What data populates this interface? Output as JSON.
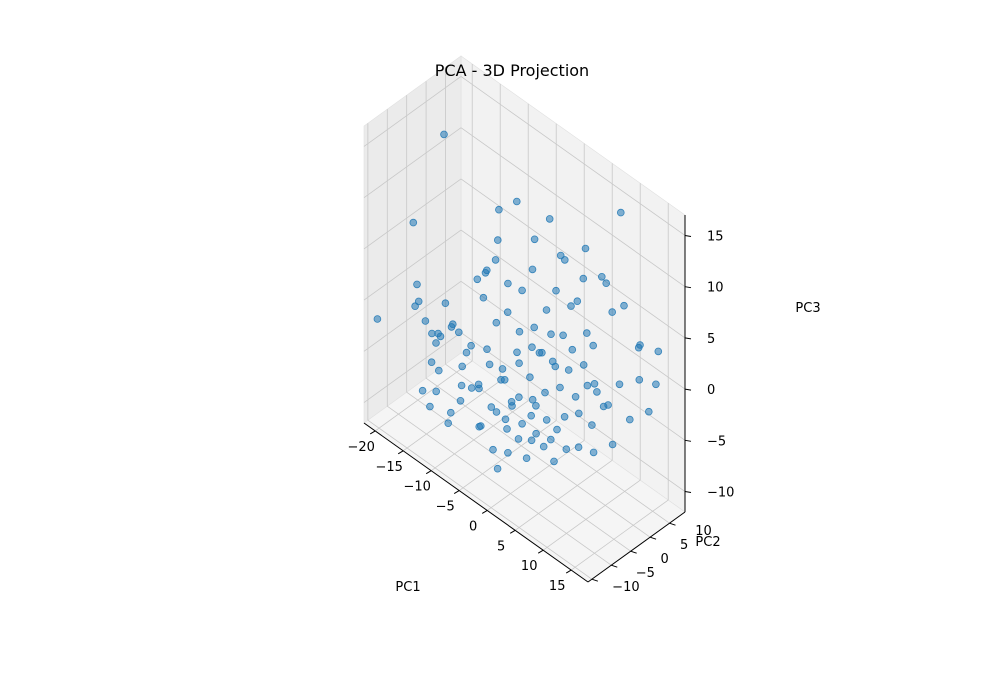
{
  "chart_data": {
    "type": "scatter",
    "projection": "3d",
    "title": "PCA - 3D Projection",
    "xlabel": "PC1",
    "ylabel": "PC2",
    "zlabel": "PC3",
    "xticks": [
      -20,
      -15,
      -10,
      -5,
      0,
      5,
      10,
      15
    ],
    "yticks": [
      -10,
      -5,
      0,
      5,
      10
    ],
    "zticks": [
      -10,
      -5,
      0,
      5,
      10,
      15
    ],
    "xlim": [
      -22,
      18
    ],
    "ylim": [
      -11,
      14
    ],
    "zlim": [
      -12,
      17
    ],
    "grid": true,
    "marker_color": "#1f77b4",
    "marker_alpha": 0.55,
    "points": [
      {
        "x": -19.5,
        "y": 6.0,
        "z": 12.5
      },
      {
        "x": -17.0,
        "y": -5.5,
        "z": 8.0
      },
      {
        "x": -21.0,
        "y": -9.0,
        "z": -2.0
      },
      {
        "x": -16.0,
        "y": -6.0,
        "z": 2.5
      },
      {
        "x": -15.0,
        "y": -7.0,
        "z": 1.5
      },
      {
        "x": -14.5,
        "y": -6.0,
        "z": -0.5
      },
      {
        "x": -13.0,
        "y": -6.5,
        "z": -1.0
      },
      {
        "x": -14.0,
        "y": -4.0,
        "z": -3.0
      },
      {
        "x": -16.0,
        "y": -6.5,
        "z": 0.5
      },
      {
        "x": -12.5,
        "y": -5.0,
        "z": -1.5
      },
      {
        "x": -13.0,
        "y": -3.0,
        "z": 1.0
      },
      {
        "x": -11.0,
        "y": -4.0,
        "z": 0.0
      },
      {
        "x": -15.0,
        "y": -2.0,
        "z": -3.0
      },
      {
        "x": -12.0,
        "y": -1.0,
        "z": -2.0
      },
      {
        "x": -15.0,
        "y": -6.0,
        "z": -7.5
      },
      {
        "x": -13.0,
        "y": -7.0,
        "z": -8.0
      },
      {
        "x": -13.5,
        "y": -4.0,
        "z": -5.5
      },
      {
        "x": -11.0,
        "y": -4.5,
        "z": -8.5
      },
      {
        "x": -10.0,
        "y": -3.0,
        "z": -4.0
      },
      {
        "x": -9.0,
        "y": -2.0,
        "z": -6.0
      },
      {
        "x": -11.5,
        "y": -1.0,
        "z": -7.0
      },
      {
        "x": -10.5,
        "y": 0.0,
        "z": -3.0
      },
      {
        "x": -8.0,
        "y": -2.0,
        "z": 5.0
      },
      {
        "x": -7.0,
        "y": -1.0,
        "z": 6.0
      },
      {
        "x": -9.0,
        "y": 1.0,
        "z": 2.0
      },
      {
        "x": -7.5,
        "y": 2.0,
        "z": 6.0
      },
      {
        "x": -6.0,
        "y": 0.0,
        "z": 1.0
      },
      {
        "x": -5.0,
        "y": 1.5,
        "z": 2.0
      },
      {
        "x": -8.0,
        "y": 0.5,
        "z": -2.5
      },
      {
        "x": -6.5,
        "y": -1.0,
        "z": -3.0
      },
      {
        "x": -7.0,
        "y": -3.0,
        "z": -5.0
      },
      {
        "x": -5.5,
        "y": -2.0,
        "z": -6.5
      },
      {
        "x": -4.5,
        "y": 0.0,
        "z": -4.0
      },
      {
        "x": -3.5,
        "y": -2.0,
        "z": -2.0
      },
      {
        "x": -3.0,
        "y": 1.0,
        "z": -1.0
      },
      {
        "x": -4.0,
        "y": 3.0,
        "z": -3.0
      },
      {
        "x": -2.5,
        "y": -1.0,
        "z": -5.5
      },
      {
        "x": -2.0,
        "y": -3.0,
        "z": -7.0
      },
      {
        "x": -6.0,
        "y": -4.0,
        "z": -8.0
      },
      {
        "x": -4.5,
        "y": -3.0,
        "z": -10.0
      },
      {
        "x": -3.0,
        "y": -4.0,
        "z": -11.0
      },
      {
        "x": -1.5,
        "y": -3.5,
        "z": -9.0
      },
      {
        "x": -1.0,
        "y": -1.5,
        "z": -8.0
      },
      {
        "x": 0.0,
        "y": -2.0,
        "z": -6.0
      },
      {
        "x": 0.5,
        "y": 0.0,
        "z": -4.0
      },
      {
        "x": 1.0,
        "y": -1.0,
        "z": -7.5
      },
      {
        "x": 1.5,
        "y": -3.0,
        "z": -8.5
      },
      {
        "x": 2.5,
        "y": -2.0,
        "z": -6.0
      },
      {
        "x": 2.0,
        "y": 1.0,
        "z": -3.0
      },
      {
        "x": 3.0,
        "y": 0.0,
        "z": -5.0
      },
      {
        "x": 3.5,
        "y": -1.5,
        "z": -7.0
      },
      {
        "x": 4.5,
        "y": 0.5,
        "z": -5.5
      },
      {
        "x": 5.0,
        "y": -1.0,
        "z": -8.0
      },
      {
        "x": 4.0,
        "y": 2.0,
        "z": -2.0
      },
      {
        "x": 5.5,
        "y": 1.0,
        "z": -4.0
      },
      {
        "x": 6.5,
        "y": 0.0,
        "z": -6.5
      },
      {
        "x": 7.0,
        "y": 2.5,
        "z": -3.5
      },
      {
        "x": 8.0,
        "y": 1.0,
        "z": -6.0
      },
      {
        "x": 7.5,
        "y": 4.0,
        "z": -1.0
      },
      {
        "x": 9.0,
        "y": 3.0,
        "z": -4.0
      },
      {
        "x": 10.0,
        "y": 2.0,
        "z": -6.0
      },
      {
        "x": 10.5,
        "y": 5.0,
        "z": -2.0
      },
      {
        "x": 12.0,
        "y": 4.0,
        "z": -5.0
      },
      {
        "x": 11.5,
        "y": 6.5,
        "z": 0.0
      },
      {
        "x": 13.0,
        "y": 7.0,
        "z": -3.0
      },
      {
        "x": 14.0,
        "y": 8.0,
        "z": 1.0
      },
      {
        "x": 15.0,
        "y": 9.0,
        "z": -2.0
      },
      {
        "x": 16.0,
        "y": 10.0,
        "z": 4.0
      },
      {
        "x": 12.5,
        "y": 10.0,
        "z": 3.0
      },
      {
        "x": 9.5,
        "y": 7.5,
        "z": 6.0
      },
      {
        "x": 8.0,
        "y": 7.0,
        "z": 9.0
      },
      {
        "x": 10.0,
        "y": 9.0,
        "z": 15.5
      },
      {
        "x": 6.0,
        "y": 6.0,
        "z": 3.0
      },
      {
        "x": 5.0,
        "y": 5.0,
        "z": 6.0
      },
      {
        "x": 3.5,
        "y": 3.5,
        "z": 2.5
      },
      {
        "x": 2.0,
        "y": 3.0,
        "z": -0.5
      },
      {
        "x": 1.0,
        "y": 4.0,
        "z": 1.5
      },
      {
        "x": -1.0,
        "y": 2.0,
        "z": 0.0
      },
      {
        "x": -2.0,
        "y": 4.0,
        "z": 1.0
      },
      {
        "x": -0.5,
        "y": 5.0,
        "z": 3.0
      },
      {
        "x": 0.5,
        "y": 6.0,
        "z": 5.0
      },
      {
        "x": 2.5,
        "y": 7.0,
        "z": 4.0
      },
      {
        "x": 4.0,
        "y": 8.0,
        "z": 7.0
      },
      {
        "x": 1.0,
        "y": 6.5,
        "z": 8.5
      },
      {
        "x": -3.0,
        "y": 5.0,
        "z": 6.0
      },
      {
        "x": -4.5,
        "y": 4.5,
        "z": 3.5
      },
      {
        "x": -6.0,
        "y": 3.0,
        "z": 4.0
      },
      {
        "x": -8.5,
        "y": 4.0,
        "z": 7.0
      },
      {
        "x": -10.0,
        "y": 3.0,
        "z": 3.5
      },
      {
        "x": -9.0,
        "y": 5.0,
        "z": 9.5
      },
      {
        "x": -6.5,
        "y": 6.0,
        "z": 11.0
      },
      {
        "x": -4.0,
        "y": 7.0,
        "z": 8.0
      },
      {
        "x": -2.0,
        "y": 8.0,
        "z": 10.5
      },
      {
        "x": 0.0,
        "y": 9.0,
        "z": 7.0
      },
      {
        "x": 3.0,
        "y": 10.0,
        "z": 9.0
      },
      {
        "x": 6.0,
        "y": 11.0,
        "z": 6.5
      },
      {
        "x": 8.5,
        "y": 12.0,
        "z": 5.0
      },
      {
        "x": 11.0,
        "y": 12.5,
        "z": 2.0
      },
      {
        "x": 13.5,
        "y": 13.0,
        "z": -1.0
      },
      {
        "x": 0.0,
        "y": 0.0,
        "z": -2.0
      },
      {
        "x": 1.0,
        "y": 1.0,
        "z": 0.5
      },
      {
        "x": -1.5,
        "y": -0.5,
        "z": 2.0
      },
      {
        "x": 2.5,
        "y": -0.5,
        "z": 1.5
      },
      {
        "x": 3.5,
        "y": 1.5,
        "z": 0.0
      },
      {
        "x": 4.5,
        "y": 3.5,
        "z": -0.5
      },
      {
        "x": 5.5,
        "y": 3.0,
        "z": 2.0
      },
      {
        "x": 6.5,
        "y": 4.5,
        "z": 0.5
      },
      {
        "x": 7.5,
        "y": 5.5,
        "z": 2.5
      },
      {
        "x": 8.5,
        "y": 5.0,
        "z": -1.5
      },
      {
        "x": 9.0,
        "y": 6.0,
        "z": -3.0
      },
      {
        "x": -0.5,
        "y": -4.0,
        "z": -3.5
      },
      {
        "x": -2.5,
        "y": -5.0,
        "z": -5.0
      },
      {
        "x": -5.0,
        "y": -6.0,
        "z": -3.0
      },
      {
        "x": -7.5,
        "y": -5.5,
        "z": -1.0
      },
      {
        "x": -9.5,
        "y": -6.5,
        "z": 1.0
      },
      {
        "x": -1.0,
        "y": -6.0,
        "z": -1.0
      },
      {
        "x": 1.5,
        "y": -5.0,
        "z": -2.0
      },
      {
        "x": 3.0,
        "y": -4.0,
        "z": -3.5
      },
      {
        "x": 0.5,
        "y": -7.0,
        "z": -4.0
      },
      {
        "x": -3.5,
        "y": -8.0,
        "z": -6.0
      },
      {
        "x": -6.5,
        "y": -8.5,
        "z": -4.5
      },
      {
        "x": -8.0,
        "y": -9.5,
        "z": -7.0
      },
      {
        "x": -10.5,
        "y": -9.0,
        "z": -5.0
      },
      {
        "x": -12.0,
        "y": -8.0,
        "z": -3.0
      },
      {
        "x": 2.0,
        "y": 2.5,
        "z": -8.0
      },
      {
        "x": -1.0,
        "y": 3.0,
        "z": -6.0
      },
      {
        "x": 4.0,
        "y": 6.0,
        "z": -4.0
      },
      {
        "x": 6.0,
        "y": 8.0,
        "z": -2.5
      }
    ]
  }
}
